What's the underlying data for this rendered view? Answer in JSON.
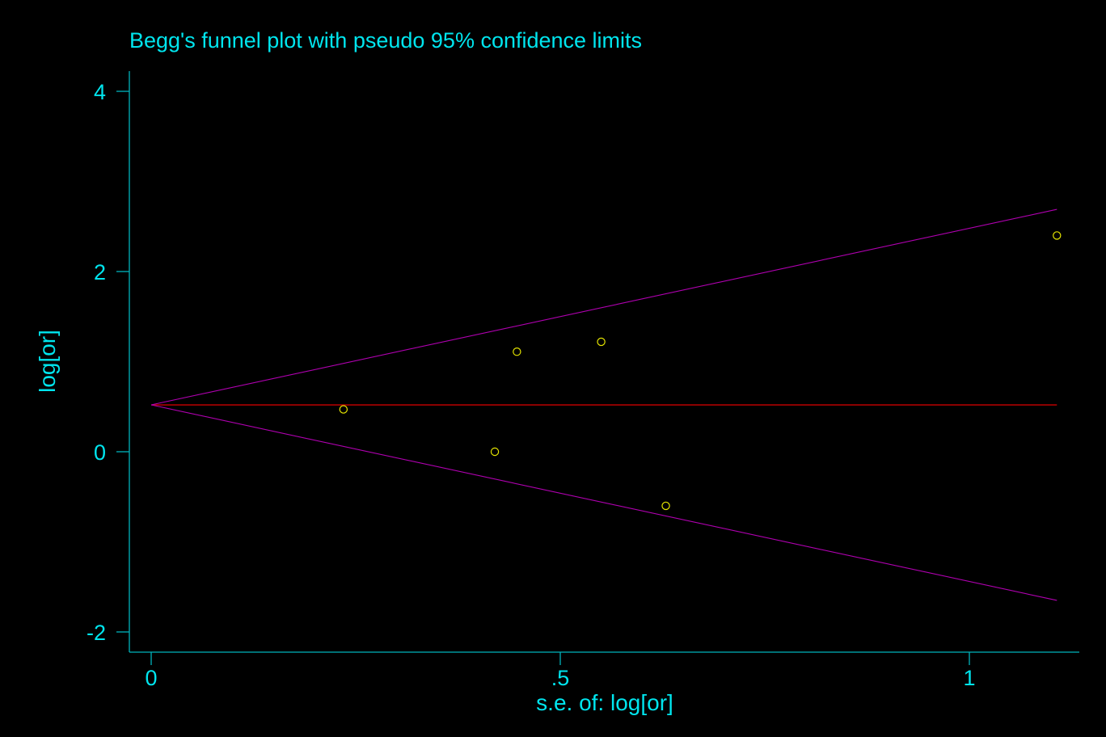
{
  "chart_data": {
    "type": "scatter",
    "title": "Begg's funnel plot with pseudo 95% confidence limits",
    "xlabel": "s.e. of: log[or]",
    "ylabel": "log[or]",
    "xlim": [
      -0.013,
      1.13
    ],
    "ylim": [
      -2.1,
      4.2
    ],
    "x_ticks": [
      0,
      0.5,
      1
    ],
    "x_tick_labels": [
      "0",
      ".5",
      "1"
    ],
    "y_ticks": [
      4,
      2,
      0,
      -2
    ],
    "y_tick_labels": [
      "4",
      "2",
      "0",
      "-2"
    ],
    "pooled_estimate": 0.52,
    "funnel_se_max": 1.107,
    "points": [
      {
        "x": 0.235,
        "y": 0.47
      },
      {
        "x": 0.42,
        "y": 0.0
      },
      {
        "x": 0.447,
        "y": 1.11
      },
      {
        "x": 0.55,
        "y": 1.22
      },
      {
        "x": 0.629,
        "y": -0.6
      },
      {
        "x": 1.107,
        "y": 2.4
      }
    ],
    "grid": false,
    "legend": "none"
  },
  "colors": {
    "background": "#000000",
    "axis_text": "#00e5ee",
    "markers": "#e5e500",
    "pooled_line": "#cc0000",
    "limit_lines": "#b000b0"
  }
}
